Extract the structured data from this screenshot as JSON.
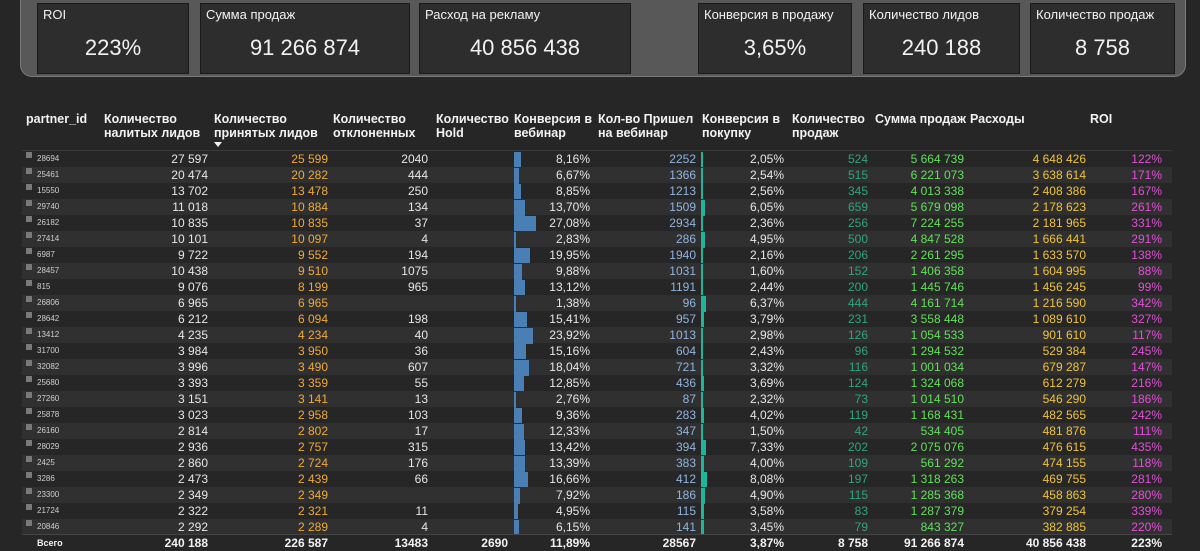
{
  "kpis": [
    {
      "label": "ROI",
      "value": "223%"
    },
    {
      "label": "Сумма продаж",
      "value": "91 266 874"
    },
    {
      "label": "Расход на рекламу",
      "value": "40 856 438"
    },
    {
      "label": "Конверсия в продажу",
      "value": "3,65%"
    },
    {
      "label": "Количество лидов",
      "value": "240 188"
    },
    {
      "label": "Количество продаж",
      "value": "8 758"
    }
  ],
  "columns": [
    "partner_id",
    "Количество налитых лидов",
    "Количество принятых лидов",
    "Количество отклоненных",
    "Количество Hold",
    "Конверсия в вебинар",
    "Кол-во Пришел на вебинар",
    "Конверсия в покупку",
    "Количество продаж",
    "Сумма продаж",
    "Расходы",
    "ROI"
  ],
  "colors": {
    "accepted": "#f0a93a",
    "webinar": "#8fb4e0",
    "sales_count": "#2fa57c",
    "sales_sum": "#62e05a",
    "costs": "#f0c33a",
    "roi": "#e24fd8",
    "bar_blue": "#4a7fb5",
    "bar_teal": "#1fb59a"
  },
  "rows": [
    {
      "id": "28694",
      "leads": "27 597",
      "accepted": "25 599",
      "rejected": "2040",
      "hold": "",
      "conv_web": "8,16%",
      "conv_web_frac": 0.0816,
      "webinar": "2252",
      "conv_buy": "2,05%",
      "conv_buy_frac": 0.0205,
      "sales": "524",
      "sum": "5 664 739",
      "costs": "4 648 426",
      "roi": "122%"
    },
    {
      "id": "25461",
      "leads": "20 474",
      "accepted": "20 282",
      "rejected": "444",
      "hold": "",
      "conv_web": "6,67%",
      "conv_web_frac": 0.0667,
      "webinar": "1366",
      "conv_buy": "2,54%",
      "conv_buy_frac": 0.0254,
      "sales": "515",
      "sum": "6 221 073",
      "costs": "3 638 614",
      "roi": "171%"
    },
    {
      "id": "15550",
      "leads": "13 702",
      "accepted": "13 478",
      "rejected": "250",
      "hold": "",
      "conv_web": "8,85%",
      "conv_web_frac": 0.0885,
      "webinar": "1213",
      "conv_buy": "2,56%",
      "conv_buy_frac": 0.0256,
      "sales": "345",
      "sum": "4 013 338",
      "costs": "2 408 386",
      "roi": "167%"
    },
    {
      "id": "29740",
      "leads": "11 018",
      "accepted": "10 884",
      "rejected": "134",
      "hold": "",
      "conv_web": "13,70%",
      "conv_web_frac": 0.137,
      "webinar": "1509",
      "conv_buy": "6,05%",
      "conv_buy_frac": 0.0605,
      "sales": "659",
      "sum": "5 679 098",
      "costs": "2 178 623",
      "roi": "261%"
    },
    {
      "id": "26182",
      "leads": "10 835",
      "accepted": "10 835",
      "rejected": "37",
      "hold": "",
      "conv_web": "27,08%",
      "conv_web_frac": 0.2708,
      "webinar": "2934",
      "conv_buy": "2,36%",
      "conv_buy_frac": 0.0236,
      "sales": "256",
      "sum": "7 224 255",
      "costs": "2 181 965",
      "roi": "331%"
    },
    {
      "id": "27414",
      "leads": "10 101",
      "accepted": "10 097",
      "rejected": "4",
      "hold": "",
      "conv_web": "2,83%",
      "conv_web_frac": 0.0283,
      "webinar": "286",
      "conv_buy": "4,95%",
      "conv_buy_frac": 0.0495,
      "sales": "500",
      "sum": "4 847 528",
      "costs": "1 666 441",
      "roi": "291%"
    },
    {
      "id": "6987",
      "leads": "9 722",
      "accepted": "9 552",
      "rejected": "194",
      "hold": "",
      "conv_web": "19,95%",
      "conv_web_frac": 0.1995,
      "webinar": "1940",
      "conv_buy": "2,16%",
      "conv_buy_frac": 0.0216,
      "sales": "206",
      "sum": "2 261 295",
      "costs": "1 633 570",
      "roi": "138%"
    },
    {
      "id": "28457",
      "leads": "10 438",
      "accepted": "9 510",
      "rejected": "1075",
      "hold": "",
      "conv_web": "9,88%",
      "conv_web_frac": 0.0988,
      "webinar": "1031",
      "conv_buy": "1,60%",
      "conv_buy_frac": 0.016,
      "sales": "152",
      "sum": "1 406 358",
      "costs": "1 604 995",
      "roi": "88%"
    },
    {
      "id": "815",
      "leads": "9 076",
      "accepted": "8 199",
      "rejected": "965",
      "hold": "",
      "conv_web": "13,12%",
      "conv_web_frac": 0.1312,
      "webinar": "1191",
      "conv_buy": "2,44%",
      "conv_buy_frac": 0.0244,
      "sales": "200",
      "sum": "1 445 746",
      "costs": "1 456 245",
      "roi": "99%"
    },
    {
      "id": "26806",
      "leads": "6 965",
      "accepted": "6 965",
      "rejected": "",
      "hold": "",
      "conv_web": "1,38%",
      "conv_web_frac": 0.0138,
      "webinar": "96",
      "conv_buy": "6,37%",
      "conv_buy_frac": 0.0637,
      "sales": "444",
      "sum": "4 161 714",
      "costs": "1 216 590",
      "roi": "342%"
    },
    {
      "id": "28642",
      "leads": "6 212",
      "accepted": "6 094",
      "rejected": "198",
      "hold": "",
      "conv_web": "15,41%",
      "conv_web_frac": 0.1541,
      "webinar": "957",
      "conv_buy": "3,79%",
      "conv_buy_frac": 0.0379,
      "sales": "231",
      "sum": "3 558 448",
      "costs": "1 089 610",
      "roi": "327%"
    },
    {
      "id": "13412",
      "leads": "4 235",
      "accepted": "4 234",
      "rejected": "40",
      "hold": "",
      "conv_web": "23,92%",
      "conv_web_frac": 0.2392,
      "webinar": "1013",
      "conv_buy": "2,98%",
      "conv_buy_frac": 0.0298,
      "sales": "126",
      "sum": "1 054 533",
      "costs": "901 610",
      "roi": "117%"
    },
    {
      "id": "31700",
      "leads": "3 984",
      "accepted": "3 950",
      "rejected": "36",
      "hold": "",
      "conv_web": "15,16%",
      "conv_web_frac": 0.1516,
      "webinar": "604",
      "conv_buy": "2,43%",
      "conv_buy_frac": 0.0243,
      "sales": "96",
      "sum": "1 294 532",
      "costs": "529 384",
      "roi": "245%"
    },
    {
      "id": "32082",
      "leads": "3 996",
      "accepted": "3 490",
      "rejected": "607",
      "hold": "",
      "conv_web": "18,04%",
      "conv_web_frac": 0.1804,
      "webinar": "721",
      "conv_buy": "3,32%",
      "conv_buy_frac": 0.0332,
      "sales": "116",
      "sum": "1 001 034",
      "costs": "679 287",
      "roi": "147%"
    },
    {
      "id": "25680",
      "leads": "3 393",
      "accepted": "3 359",
      "rejected": "55",
      "hold": "",
      "conv_web": "12,85%",
      "conv_web_frac": 0.1285,
      "webinar": "436",
      "conv_buy": "3,69%",
      "conv_buy_frac": 0.0369,
      "sales": "124",
      "sum": "1 324 068",
      "costs": "612 279",
      "roi": "216%"
    },
    {
      "id": "27260",
      "leads": "3 151",
      "accepted": "3 141",
      "rejected": "13",
      "hold": "",
      "conv_web": "2,76%",
      "conv_web_frac": 0.0276,
      "webinar": "87",
      "conv_buy": "2,32%",
      "conv_buy_frac": 0.0232,
      "sales": "73",
      "sum": "1 014 510",
      "costs": "546 290",
      "roi": "186%"
    },
    {
      "id": "25878",
      "leads": "3 023",
      "accepted": "2 958",
      "rejected": "103",
      "hold": "",
      "conv_web": "9,36%",
      "conv_web_frac": 0.0936,
      "webinar": "283",
      "conv_buy": "4,02%",
      "conv_buy_frac": 0.0402,
      "sales": "119",
      "sum": "1 168 431",
      "costs": "482 565",
      "roi": "242%"
    },
    {
      "id": "26160",
      "leads": "2 814",
      "accepted": "2 802",
      "rejected": "17",
      "hold": "",
      "conv_web": "12,33%",
      "conv_web_frac": 0.1233,
      "webinar": "347",
      "conv_buy": "1,50%",
      "conv_buy_frac": 0.015,
      "sales": "42",
      "sum": "534 405",
      "costs": "481 876",
      "roi": "111%"
    },
    {
      "id": "28029",
      "leads": "2 936",
      "accepted": "2 757",
      "rejected": "315",
      "hold": "",
      "conv_web": "13,42%",
      "conv_web_frac": 0.1342,
      "webinar": "394",
      "conv_buy": "7,33%",
      "conv_buy_frac": 0.0733,
      "sales": "202",
      "sum": "2 075 076",
      "costs": "476 615",
      "roi": "435%"
    },
    {
      "id": "2425",
      "leads": "2 860",
      "accepted": "2 724",
      "rejected": "176",
      "hold": "",
      "conv_web": "13,39%",
      "conv_web_frac": 0.1339,
      "webinar": "383",
      "conv_buy": "4,00%",
      "conv_buy_frac": 0.04,
      "sales": "109",
      "sum": "561 292",
      "costs": "474 155",
      "roi": "118%"
    },
    {
      "id": "3286",
      "leads": "2 473",
      "accepted": "2 439",
      "rejected": "66",
      "hold": "",
      "conv_web": "16,66%",
      "conv_web_frac": 0.1666,
      "webinar": "412",
      "conv_buy": "8,08%",
      "conv_buy_frac": 0.0808,
      "sales": "197",
      "sum": "1 318 263",
      "costs": "469 755",
      "roi": "281%"
    },
    {
      "id": "23300",
      "leads": "2 349",
      "accepted": "2 349",
      "rejected": "",
      "hold": "",
      "conv_web": "7,92%",
      "conv_web_frac": 0.0792,
      "webinar": "186",
      "conv_buy": "4,90%",
      "conv_buy_frac": 0.049,
      "sales": "115",
      "sum": "1 285 368",
      "costs": "458 863",
      "roi": "280%"
    },
    {
      "id": "21724",
      "leads": "2 322",
      "accepted": "2 321",
      "rejected": "11",
      "hold": "",
      "conv_web": "4,95%",
      "conv_web_frac": 0.0495,
      "webinar": "115",
      "conv_buy": "3,58%",
      "conv_buy_frac": 0.0358,
      "sales": "83",
      "sum": "1 287 379",
      "costs": "379 254",
      "roi": "339%"
    },
    {
      "id": "20846",
      "leads": "2 292",
      "accepted": "2 289",
      "rejected": "4",
      "hold": "",
      "conv_web": "6,15%",
      "conv_web_frac": 0.0615,
      "webinar": "141",
      "conv_buy": "3,45%",
      "conv_buy_frac": 0.0345,
      "sales": "79",
      "sum": "843 327",
      "costs": "382 885",
      "roi": "220%"
    }
  ],
  "totals": {
    "label": "Всего",
    "leads": "240 188",
    "accepted": "226 587",
    "rejected": "13483",
    "hold": "2690",
    "conv_web": "11,89%",
    "webinar": "28567",
    "conv_buy": "3,87%",
    "sales": "8 758",
    "sum": "91 266 874",
    "costs": "40 856 438",
    "roi": "223%"
  }
}
